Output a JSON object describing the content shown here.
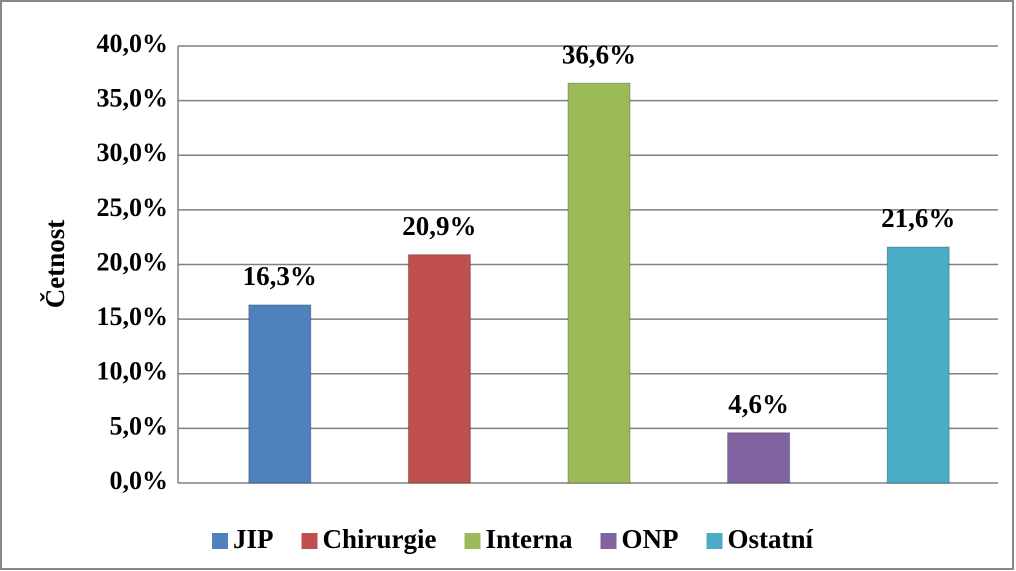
{
  "chart_data": {
    "type": "bar",
    "y_label": "Četnost",
    "ylim": [
      0,
      40
    ],
    "yticks": [
      {
        "value": 0,
        "label": "0,0%"
      },
      {
        "value": 5,
        "label": "5,0%"
      },
      {
        "value": 10,
        "label": "10,0%"
      },
      {
        "value": 15,
        "label": "15,0%"
      },
      {
        "value": 20,
        "label": "20,0%"
      },
      {
        "value": 25,
        "label": "25,0%"
      },
      {
        "value": 30,
        "label": "30,0%"
      },
      {
        "value": 35,
        "label": "35,0%"
      },
      {
        "value": 40,
        "label": "40,0%"
      }
    ],
    "grid": true,
    "legend": "bottom",
    "series": [
      {
        "name": "JIP",
        "color": "#4f81bd",
        "values": [
          16.3
        ],
        "value_labels": [
          "16,3%"
        ]
      },
      {
        "name": "Chirurgie",
        "color": "#c0504d",
        "values": [
          20.9
        ],
        "value_labels": [
          "20,9%"
        ]
      },
      {
        "name": "Interna",
        "color": "#9bbb59",
        "values": [
          36.6
        ],
        "value_labels": [
          "36,6%"
        ]
      },
      {
        "name": "ONP",
        "color": "#8064a2",
        "values": [
          4.6
        ],
        "value_labels": [
          "4,6%"
        ]
      },
      {
        "name": "Ostatní",
        "color": "#4bacc6",
        "values": [
          21.6
        ],
        "value_labels": [
          "21,6%"
        ]
      }
    ]
  }
}
